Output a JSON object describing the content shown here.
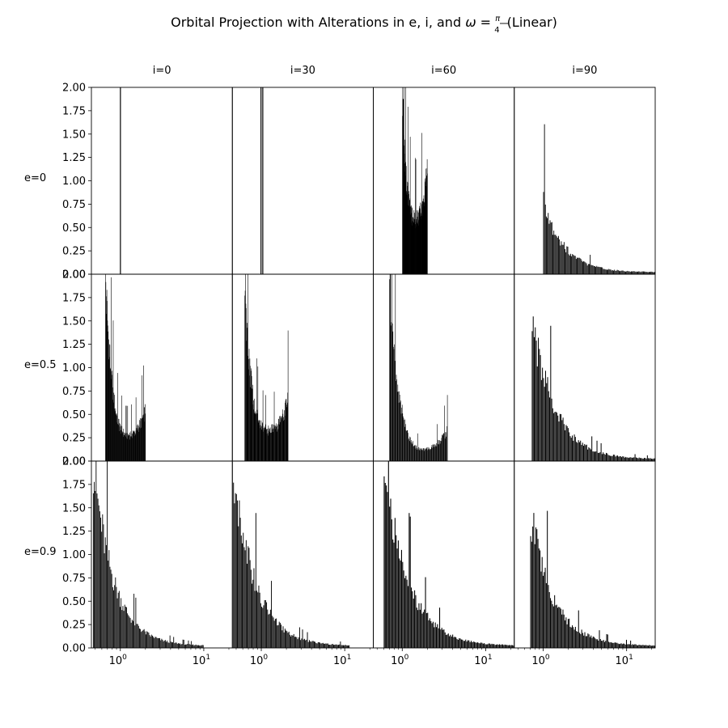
{
  "chart_data": {
    "type": "bar",
    "title": "Orbital Projection with Alterations in e, i, and ω = π/4 (Linear)",
    "title_parts": {
      "prefix": "Orbital Projection with Alterations in e, i, and ",
      "omega": "ω",
      "equals": " = ",
      "frac_num": "π",
      "frac_den": "4",
      "suffix": " (Linear)"
    },
    "column_labels": [
      "i=0",
      "i=30",
      "i=60",
      "i=90"
    ],
    "row_labels": [
      "e=0",
      "e=0.5",
      "e=0.9"
    ],
    "x_scale": "log",
    "xlim": [
      0.45,
      22
    ],
    "ylim": [
      0,
      2
    ],
    "y_ticks": [
      "0.00",
      "0.25",
      "0.50",
      "0.75",
      "1.00",
      "1.25",
      "1.50",
      "1.75",
      "2.00"
    ],
    "x_ticks": [
      {
        "value": 1,
        "base": "10",
        "exp": "0"
      },
      {
        "value": 10,
        "base": "10",
        "exp": "1"
      }
    ],
    "color": "#000000",
    "panels": [
      {
        "row": 0,
        "col": 0,
        "spikes": [
          1.0
        ]
      },
      {
        "row": 0,
        "col": 1,
        "spikes": [
          0.99,
          1.04
        ]
      },
      {
        "row": 0,
        "col": 2,
        "start": 1.0,
        "end": 2.0,
        "v0": 2.0,
        "vmin": 0.55,
        "vend": 1.15,
        "tail": 0
      },
      {
        "row": 0,
        "col": 3,
        "start": 1.0,
        "end": 22,
        "v0": 0.82,
        "vmin": 0.02,
        "vend": 0.02,
        "tail": 1
      },
      {
        "row": 1,
        "col": 0,
        "start": 0.66,
        "end": 2.0,
        "v0": 2.0,
        "vmin": 0.25,
        "vend": 0.55,
        "tail": 0
      },
      {
        "row": 1,
        "col": 1,
        "start": 0.63,
        "end": 2.1,
        "v0": 1.85,
        "vmin": 0.3,
        "vend": 0.68,
        "tail": 0
      },
      {
        "row": 1,
        "col": 2,
        "start": 0.7,
        "end": 3.5,
        "v0": 2.0,
        "vmin": 0.1,
        "vend": 0.34,
        "tail": 0
      },
      {
        "row": 1,
        "col": 3,
        "start": 0.73,
        "end": 22,
        "v0": 1.57,
        "vmin": 0.02,
        "vend": 0.02,
        "tail": 1
      },
      {
        "row": 2,
        "col": 0,
        "start": 0.47,
        "end": 10,
        "v0": 2.0,
        "vmin": 0.02,
        "vend": 0.02,
        "tail": 1
      },
      {
        "row": 2,
        "col": 1,
        "start": 0.46,
        "end": 11.5,
        "v0": 2.0,
        "vmin": 0.02,
        "vend": 0.06,
        "tail": 1
      },
      {
        "row": 2,
        "col": 2,
        "start": 0.6,
        "end": 22,
        "v0": 2.0,
        "vmin": 0.02,
        "vend": 0.02,
        "tail": 1
      },
      {
        "row": 2,
        "col": 3,
        "start": 0.7,
        "end": 22,
        "v0": 1.48,
        "vmin": 0.02,
        "vend": 0.02,
        "tail": 1
      }
    ]
  }
}
